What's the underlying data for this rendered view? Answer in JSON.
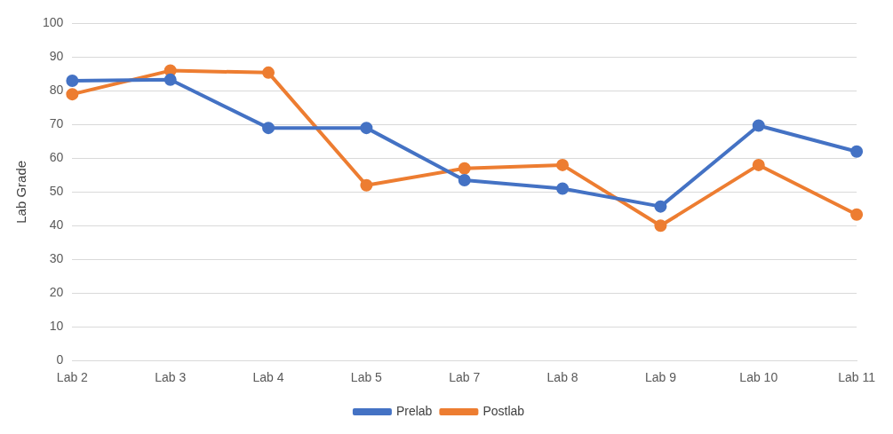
{
  "chart_data": {
    "type": "line",
    "ylabel": "Lab Grade",
    "categories": [
      "Lab 2",
      "Lab 3",
      "Lab 4",
      "Lab 5",
      "Lab 7",
      "Lab 8",
      "Lab 9",
      "Lab 10",
      "Lab 11"
    ],
    "series": [
      {
        "name": "Prelab",
        "color": "#4472c4",
        "values": [
          83,
          83.3,
          69,
          69,
          53.5,
          51,
          45.7,
          69.7,
          62
        ]
      },
      {
        "name": "Postlab",
        "color": "#ed7d31",
        "values": [
          79,
          86,
          85.4,
          52,
          57,
          58,
          40,
          58,
          43.3
        ]
      }
    ],
    "ylim": [
      0,
      100
    ],
    "yticks": [
      0,
      10,
      20,
      30,
      40,
      50,
      60,
      70,
      80,
      90,
      100
    ],
    "grid": "y",
    "legend": "bottom",
    "marker": "circle",
    "line_style": "solid"
  }
}
